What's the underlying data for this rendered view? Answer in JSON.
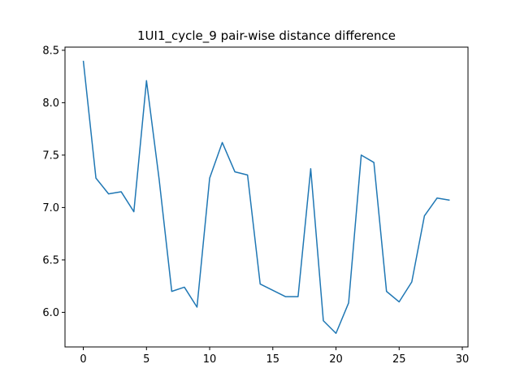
{
  "chart_data": {
    "type": "line",
    "title": "1UI1_cycle_9 pair-wise distance difference",
    "xlabel": "",
    "ylabel": "",
    "xlim": [
      -1.45,
      30.45
    ],
    "ylim": [
      5.67,
      8.53
    ],
    "xticks": [
      0,
      5,
      10,
      15,
      20,
      25,
      30
    ],
    "yticks": [
      6.0,
      6.5,
      7.0,
      7.5,
      8.0,
      8.5
    ],
    "grid": false,
    "color": "#1f77b4",
    "series": [
      {
        "x": [
          0,
          1,
          2,
          3,
          4,
          5,
          6,
          7,
          8,
          9,
          10,
          11,
          12,
          13,
          14,
          15,
          16,
          17,
          18,
          19,
          20,
          21,
          22,
          23,
          24,
          25,
          26,
          27,
          28,
          29
        ],
        "values": [
          8.4,
          7.28,
          7.13,
          7.15,
          6.96,
          8.21,
          7.27,
          6.2,
          6.24,
          6.05,
          7.28,
          7.62,
          7.34,
          7.31,
          6.27,
          6.21,
          6.15,
          6.15,
          7.37,
          5.92,
          5.8,
          6.09,
          7.5,
          7.43,
          6.2,
          6.1,
          6.29,
          6.92,
          7.09,
          7.07
        ]
      }
    ]
  }
}
